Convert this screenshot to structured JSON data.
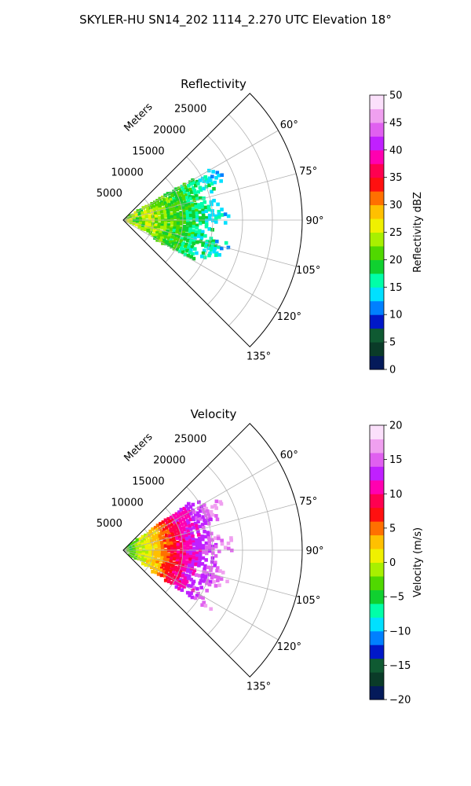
{
  "figure": {
    "title": "SKYLER-HU  SN14_202  1114_2.270 UTC Elevation 18°"
  },
  "colors": {
    "grid": "#b0b0b0",
    "frame": "#000000",
    "background": "#ffffff"
  },
  "chart_data": [
    {
      "type": "heatmap",
      "projection": "polar-sector",
      "title": "Reflectivity",
      "radial_axis_label": "Meters",
      "radial_ticks": [
        5000,
        10000,
        15000,
        20000,
        25000
      ],
      "radial_tick_labels": [
        "5000",
        "10000",
        "15000",
        "20000",
        "25000"
      ],
      "radial_range": [
        0,
        30000
      ],
      "azimuth_range": [
        45,
        135
      ],
      "azimuth_ticks": [
        60,
        75,
        90,
        105,
        120,
        135
      ],
      "azimuth_tick_labels": [
        "60°",
        "75°",
        "90°",
        "105°",
        "120°",
        "135°"
      ],
      "grid": true,
      "data_extent": {
        "range_max_approx": 17000,
        "azimuth_min": 60,
        "azimuth_max": 120
      },
      "field_description": "values near origin ~22-28 (yellow/green), decreasing to ~12-18 (cyan/green) at outer ranges",
      "colorbar": {
        "label": "Reflectivity dBZ",
        "min": 0,
        "max": 50,
        "ticks": [
          0,
          5,
          10,
          15,
          20,
          25,
          30,
          35,
          40,
          45,
          50
        ],
        "tick_labels": [
          "0",
          "5",
          "10",
          "15",
          "20",
          "25",
          "30",
          "35",
          "40",
          "45",
          "50"
        ],
        "stops": [
          "#041a5a",
          "#0a3b28",
          "#0f5a32",
          "#0018c8",
          "#0080ff",
          "#00e0ff",
          "#00ffa8",
          "#10d030",
          "#50d800",
          "#a8f000",
          "#f0f000",
          "#ffc000",
          "#ff7000",
          "#ff1010",
          "#ff0050",
          "#ff00b0",
          "#c020ff",
          "#e060f0",
          "#f0a0f0",
          "#fbe0fb"
        ]
      }
    },
    {
      "type": "heatmap",
      "projection": "polar-sector",
      "title": "Velocity",
      "radial_axis_label": "Meters",
      "radial_ticks": [
        5000,
        10000,
        15000,
        20000,
        25000
      ],
      "radial_tick_labels": [
        "5000",
        "10000",
        "15000",
        "20000",
        "25000"
      ],
      "radial_range": [
        0,
        30000
      ],
      "azimuth_range": [
        45,
        135
      ],
      "azimuth_ticks": [
        60,
        75,
        90,
        105,
        120,
        135
      ],
      "azimuth_tick_labels": [
        "60°",
        "75°",
        "90°",
        "105°",
        "120°",
        "135°"
      ],
      "grid": true,
      "data_extent": {
        "range_max_approx": 17000,
        "azimuth_min": 55,
        "azimuth_max": 125
      },
      "field_description": "near origin ~-5 to 0 (green/yellow), mid range ~8-12 (red), outer range ~15 (purple)",
      "colorbar": {
        "label": "Velocity (m/s)",
        "min": -20,
        "max": 20,
        "ticks": [
          -20,
          -15,
          -10,
          -5,
          0,
          5,
          10,
          15,
          20
        ],
        "tick_labels": [
          "−20",
          "−15",
          "−10",
          "−5",
          "0",
          "5",
          "10",
          "15",
          "20"
        ],
        "stops": [
          "#041a5a",
          "#0a3b28",
          "#0f5a32",
          "#0018c8",
          "#0080ff",
          "#00e0ff",
          "#00ffa8",
          "#10d030",
          "#50d800",
          "#a8f000",
          "#f0f000",
          "#ffc000",
          "#ff7000",
          "#ff1010",
          "#ff0050",
          "#ff00b0",
          "#c020ff",
          "#e060f0",
          "#f0a0f0",
          "#fbe0fb"
        ]
      }
    }
  ]
}
